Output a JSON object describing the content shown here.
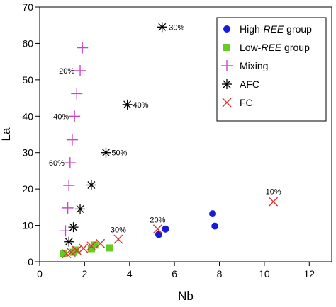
{
  "chart_data": {
    "type": "scatter",
    "xlabel": "Nb",
    "ylabel": "La",
    "xlim": [
      0,
      13
    ],
    "ylim": [
      0,
      70
    ],
    "xticks": [
      0,
      2,
      4,
      6,
      8,
      10,
      12
    ],
    "yticks": [
      0,
      10,
      20,
      30,
      40,
      50,
      60,
      70
    ],
    "xtick_labels": [
      "0",
      "2",
      "4",
      "6",
      "8",
      "10",
      "12"
    ],
    "ytick_labels": [
      "0",
      "10",
      "20",
      "30",
      "40",
      "50",
      "60",
      "70"
    ],
    "grid": false,
    "legend_position": "top-right",
    "series": [
      {
        "name": "High-REE group",
        "legend_parts": [
          "High-",
          "REE",
          " group"
        ],
        "marker": "circle",
        "color": "#1a1adb",
        "points": [
          [
            5.3,
            7.5
          ],
          [
            5.6,
            9.0
          ],
          [
            7.7,
            13.2
          ],
          [
            7.8,
            9.8
          ]
        ]
      },
      {
        "name": "Low-REE group",
        "legend_parts": [
          "Low-",
          "REE",
          " group"
        ],
        "marker": "square",
        "color": "#66cc22",
        "points": [
          [
            1.05,
            2.3
          ],
          [
            1.5,
            2.6
          ],
          [
            1.6,
            3.2
          ],
          [
            2.3,
            3.6
          ],
          [
            2.45,
            4.6
          ],
          [
            3.1,
            3.8
          ]
        ]
      },
      {
        "name": "Mixing",
        "legend_parts": [
          "Mixing"
        ],
        "marker": "plus",
        "color": "#cc44cc",
        "points": [
          [
            1.15,
            8.5
          ],
          [
            1.25,
            14.8
          ],
          [
            1.3,
            21.0
          ],
          [
            1.35,
            27.2
          ],
          [
            1.45,
            33.5
          ],
          [
            1.55,
            40.0
          ],
          [
            1.65,
            46.2
          ],
          [
            1.8,
            52.5
          ],
          [
            1.9,
            58.8
          ]
        ]
      },
      {
        "name": "AFC",
        "legend_parts": [
          "AFC"
        ],
        "marker": "star",
        "color": "#000000",
        "points": [
          [
            1.3,
            5.5
          ],
          [
            1.5,
            9.5
          ],
          [
            1.8,
            14.5
          ],
          [
            2.3,
            21.1
          ],
          [
            2.95,
            30.0
          ],
          [
            3.9,
            43.2
          ],
          [
            5.45,
            64.5
          ]
        ]
      },
      {
        "name": "FC",
        "legend_parts": [
          "FC"
        ],
        "marker": "x",
        "color": "#e03030",
        "points": [
          [
            1.2,
            2.2
          ],
          [
            1.4,
            2.6
          ],
          [
            1.65,
            3.1
          ],
          [
            1.95,
            3.7
          ],
          [
            2.3,
            4.3
          ],
          [
            2.7,
            5.0
          ],
          [
            3.5,
            6.2
          ],
          [
            5.25,
            9.0
          ],
          [
            10.4,
            16.5
          ]
        ]
      }
    ],
    "annotations": [
      {
        "text": "20%",
        "x": 1.55,
        "y": 52.5,
        "anchor": "end"
      },
      {
        "text": "40%",
        "x": 1.3,
        "y": 40.0,
        "anchor": "end"
      },
      {
        "text": "60%",
        "x": 1.1,
        "y": 27.2,
        "anchor": "end"
      },
      {
        "text": "30%",
        "x": 5.75,
        "y": 64.5,
        "anchor": "start"
      },
      {
        "text": "40%",
        "x": 4.15,
        "y": 43.2,
        "anchor": "start"
      },
      {
        "text": "50%",
        "x": 3.2,
        "y": 30.0,
        "anchor": "start"
      },
      {
        "text": "10%",
        "x": 10.4,
        "y": 19.3,
        "anchor": "middle"
      },
      {
        "text": "20%",
        "x": 5.25,
        "y": 11.6,
        "anchor": "middle"
      },
      {
        "text": "30%",
        "x": 3.5,
        "y": 8.8,
        "anchor": "middle"
      }
    ]
  }
}
